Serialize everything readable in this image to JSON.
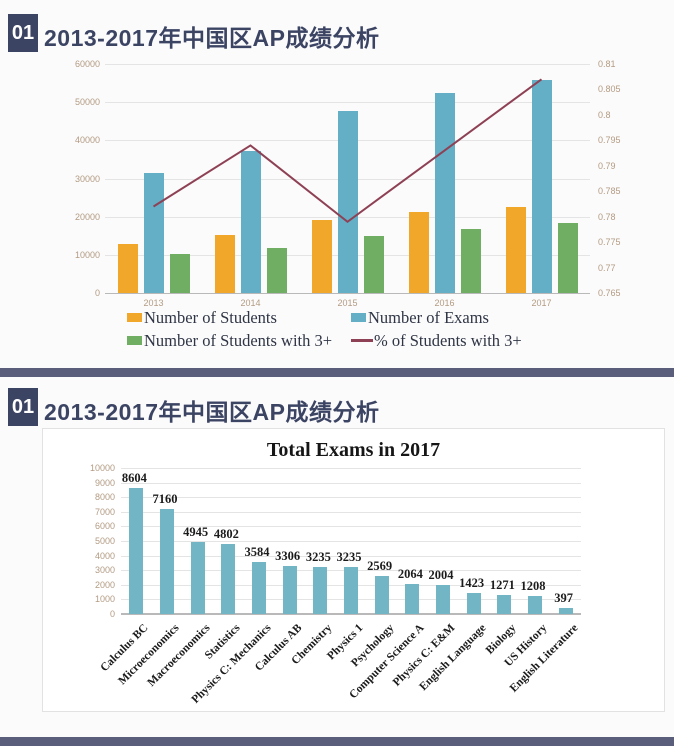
{
  "colors": {
    "navy": "#3c4464",
    "band": "#5a5e7b",
    "grid": "#e4e4e4",
    "axis_text": "#b39b83",
    "legend_text": "#2f3545",
    "students_orange": "#f0a72a",
    "exams_blue": "#64aec6",
    "with3_green": "#6fae63",
    "pct_line_red": "#8e4154",
    "bar2_teal": "#72b5c5"
  },
  "panels": [
    {
      "badge": "01",
      "title": "2013-2017年中国区AP成绩分析"
    },
    {
      "badge": "01",
      "title": "2013-2017年中国区AP成绩分析"
    }
  ],
  "chart_data": [
    {
      "type": "bar",
      "subtype": "combo-bar-line-dual-axis",
      "categories": [
        "2013",
        "2014",
        "2015",
        "2016",
        "2017"
      ],
      "series": [
        {
          "name": "Number of Students",
          "kind": "bar",
          "axis": "left",
          "color": "#f0a72a",
          "values": [
            12800,
            15200,
            19100,
            21200,
            22500
          ]
        },
        {
          "name": "Number of Exams",
          "kind": "bar",
          "axis": "left",
          "color": "#64aec6",
          "values": [
            31500,
            37200,
            47700,
            52400,
            55800
          ]
        },
        {
          "name": "Number of Students with 3+",
          "kind": "bar",
          "axis": "left",
          "color": "#6fae63",
          "values": [
            10200,
            11800,
            14900,
            16800,
            18300
          ]
        },
        {
          "name": "% of Students with 3+",
          "kind": "line",
          "axis": "right",
          "color": "#8e4154",
          "values": [
            0.782,
            0.794,
            0.779,
            0.793,
            0.807
          ]
        }
      ],
      "left_axis": {
        "min": 0,
        "max": 60000,
        "step": 10000,
        "ticks": [
          "0",
          "10000",
          "20000",
          "30000",
          "40000",
          "50000",
          "60000"
        ]
      },
      "right_axis": {
        "min": 0.765,
        "max": 0.81,
        "step": 0.005,
        "ticks_top_to_bottom": [
          "0.81",
          "0.805",
          "0.8",
          "0.795",
          "0.79",
          "0.785",
          "0.78",
          "0.775",
          "0.77",
          "0.765"
        ]
      },
      "grid": true,
      "legend_position": "bottom"
    },
    {
      "type": "bar",
      "title": "Total Exams in 2017",
      "categories": [
        "Calculus BC",
        "Microeconomics",
        "Macroeconomics",
        "Statistics",
        "Physics C: Mechanics",
        "Calculus AB",
        "Chemistry",
        "Physics 1",
        "Psychology",
        "Computer Science A",
        "Physics C: E&M",
        "English Language",
        "Biology",
        "US History",
        "English Literature"
      ],
      "values": [
        8604,
        7160,
        4945,
        4802,
        3584,
        3306,
        3235,
        3235,
        2569,
        2064,
        2004,
        1423,
        1271,
        1208,
        397
      ],
      "ylim": [
        0,
        10000
      ],
      "ystep": 1000,
      "yticks": [
        "0",
        "1000",
        "2000",
        "3000",
        "4000",
        "5000",
        "6000",
        "7000",
        "8000",
        "9000",
        "10000"
      ],
      "grid": true,
      "data_labels": true
    }
  ]
}
